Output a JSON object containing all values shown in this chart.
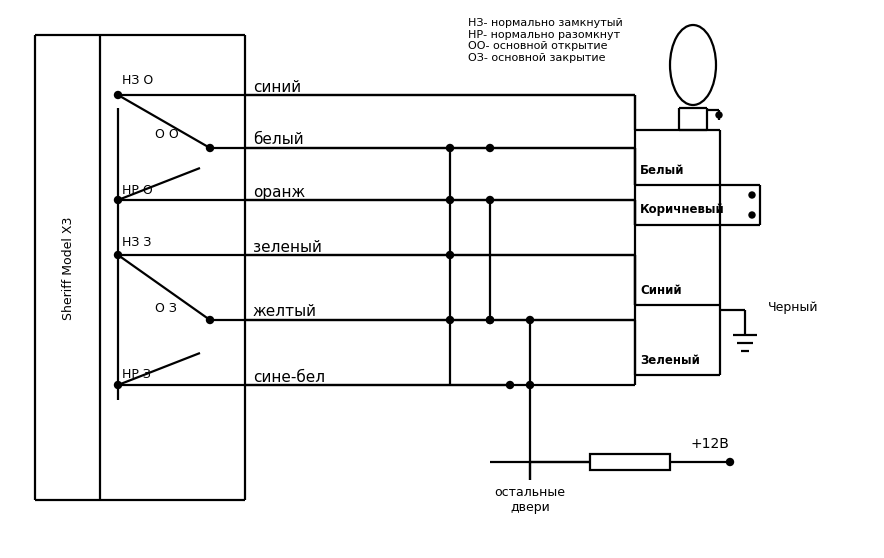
{
  "bg_color": "#ffffff",
  "legend_text": "НЗ- нормально замкнутый\nНР- нормально разомкнут\nОО- основной открытие\nОЗ- основной закрытие",
  "sheriff_label": "Sheriff Model X3",
  "connector_labels": [
    "Белый",
    "Коричневый",
    "Синий",
    "Зеленый"
  ],
  "bottom_label1": "остальные",
  "bottom_label2": "двери",
  "plus12v_label": "+12В",
  "black_label": "Черный",
  "wire_names": [
    "синий",
    "белый",
    "оранж",
    "зеленый",
    "желтый",
    "сине-бел"
  ],
  "switch_labels": [
    "НЗ О",
    "О О",
    "НР О",
    "НЗ З",
    "О З",
    "НР З"
  ]
}
